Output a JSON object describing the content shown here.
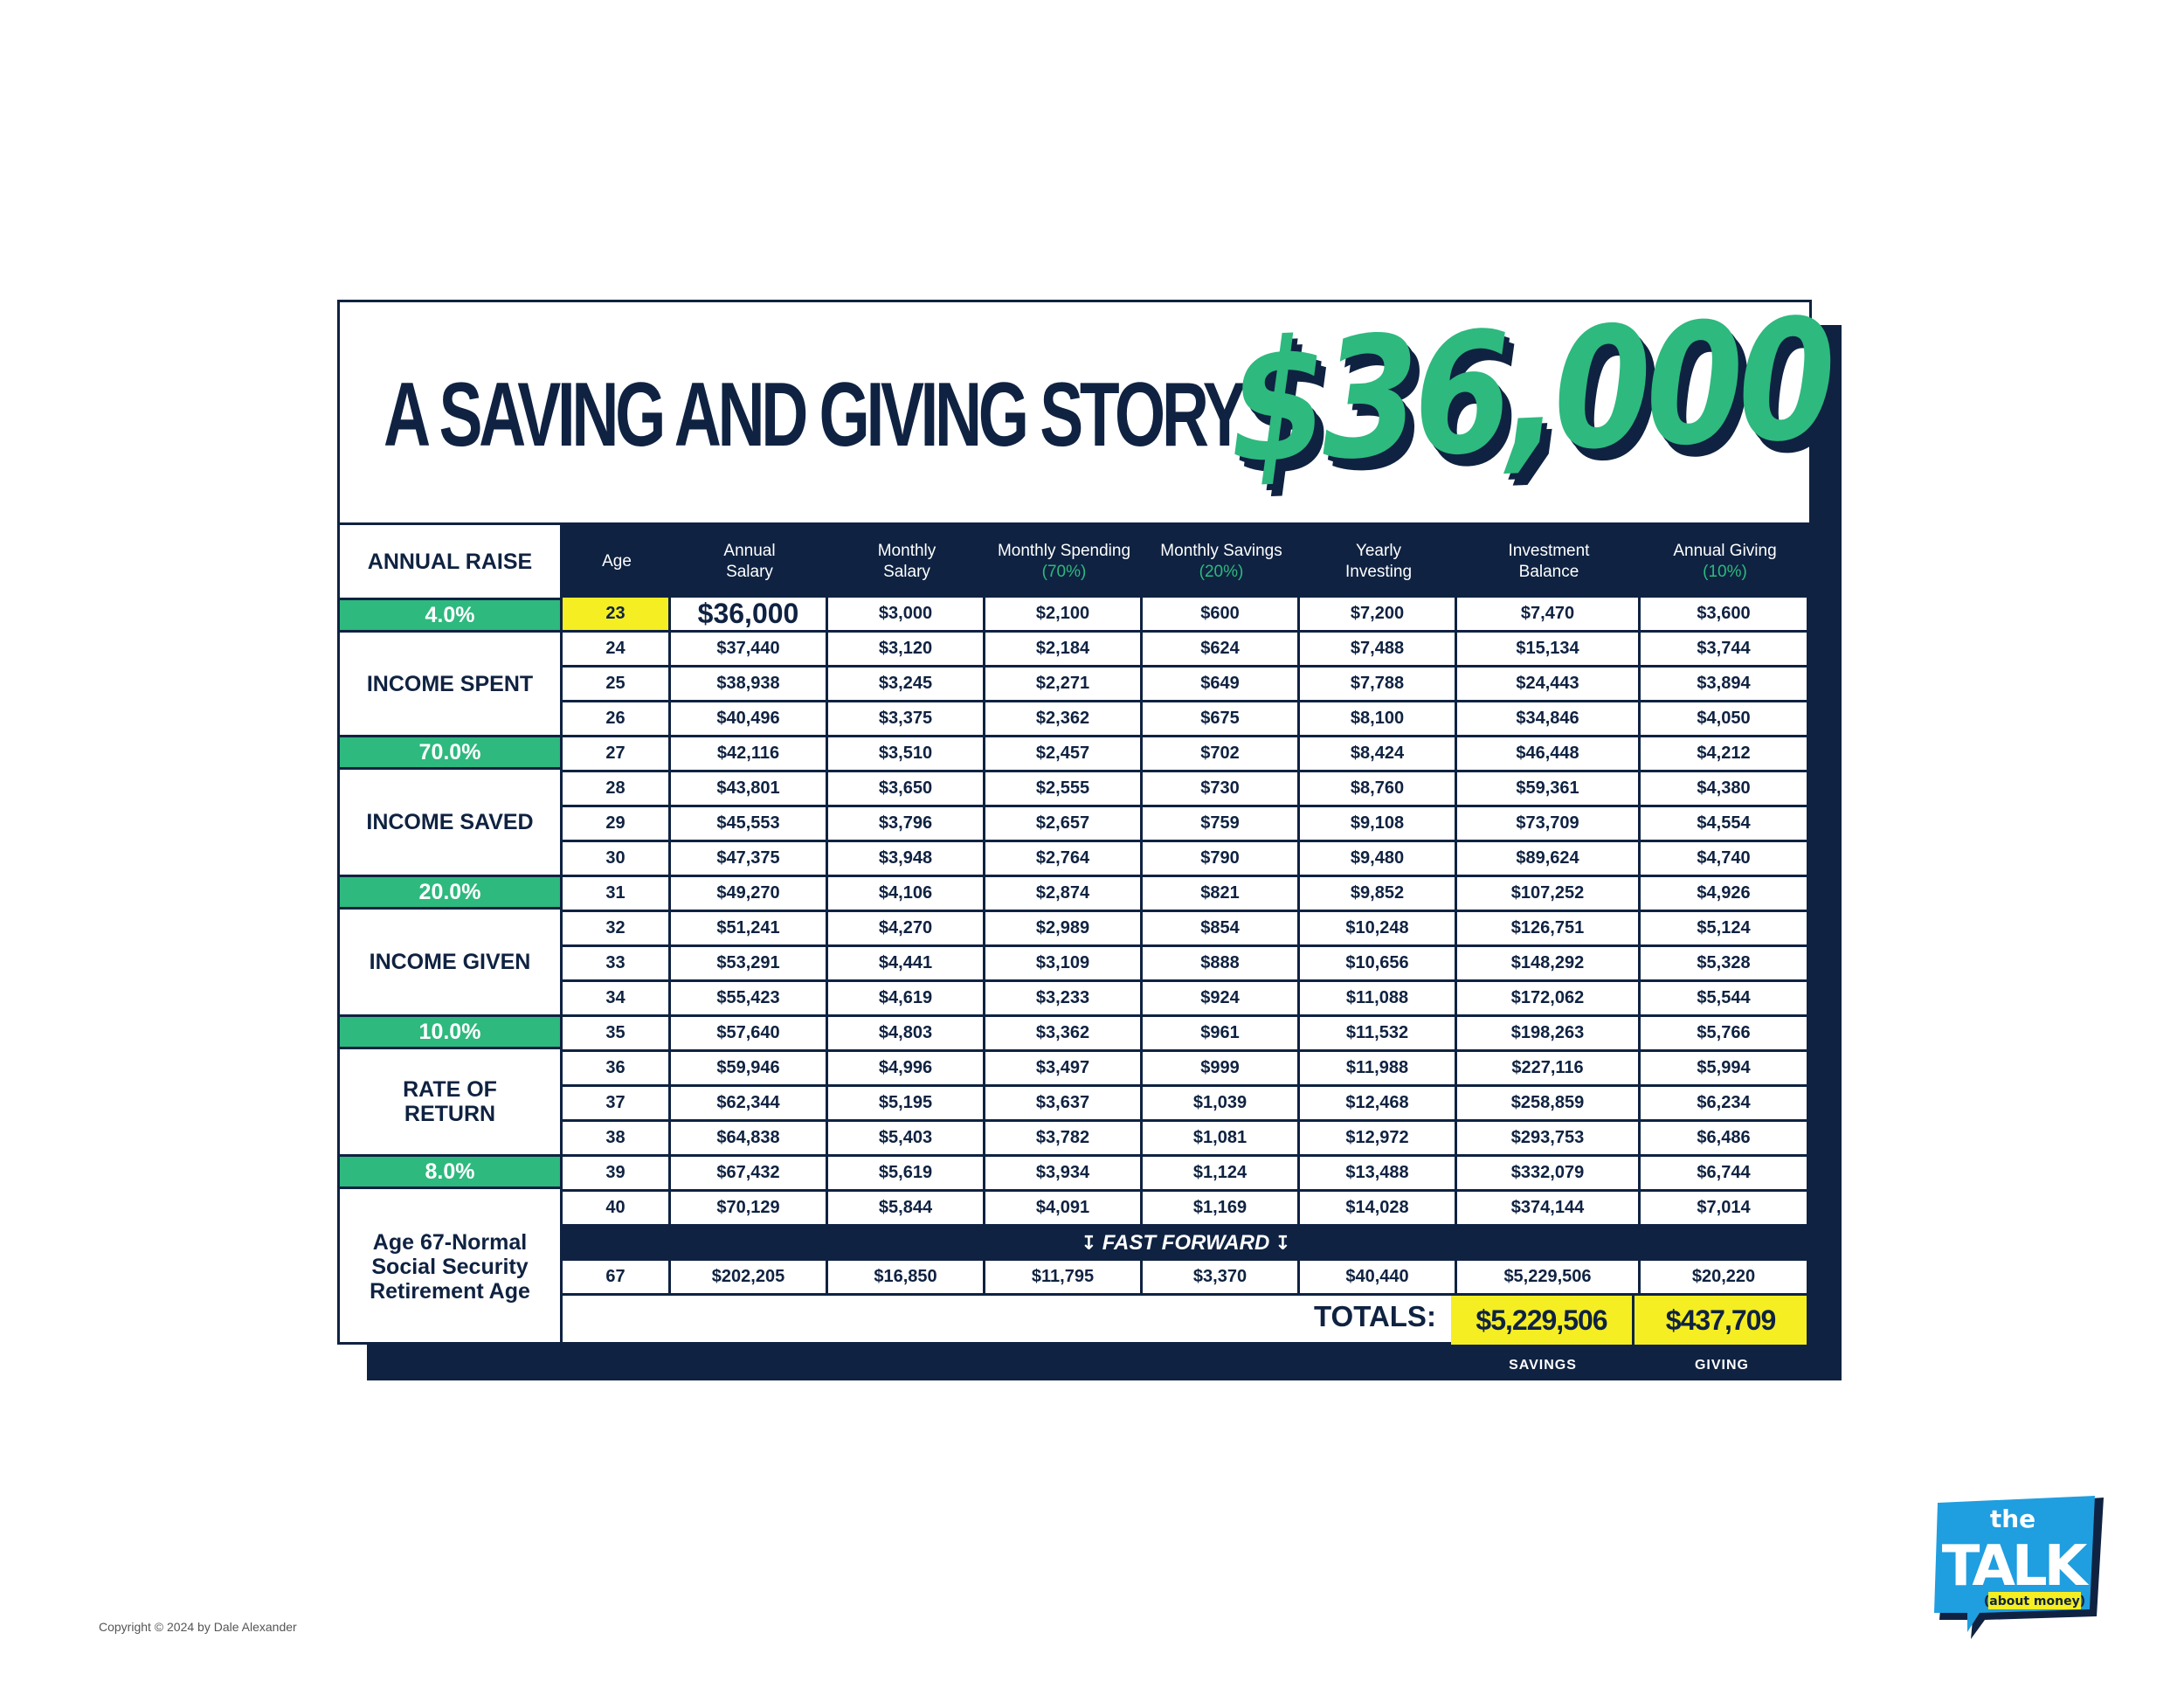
{
  "title": "A SAVING AND GIVING STORY",
  "big_amount": "$36,000",
  "left_panel": {
    "annual_raise_label": "ANNUAL RAISE",
    "annual_raise_value": "4.0%",
    "income_spent_label": "INCOME SPENT",
    "income_spent_value": "70.0%",
    "income_saved_label": "INCOME SAVED",
    "income_saved_value": "20.0%",
    "income_given_label": "INCOME GIVEN",
    "income_given_value": "10.0%",
    "rate_of_return_label_1": "RATE OF",
    "rate_of_return_label_2": "RETURN",
    "rate_of_return_value": "8.0%",
    "retirement_label_1": "Age 67-Normal",
    "retirement_label_2": "Social Security",
    "retirement_label_3": "Retirement Age"
  },
  "headers": [
    {
      "line1": "Age",
      "line2": "",
      "sub": ""
    },
    {
      "line1": "Annual",
      "line2": "Salary",
      "sub": ""
    },
    {
      "line1": "Monthly",
      "line2": "Salary",
      "sub": ""
    },
    {
      "line1": "Monthly Spending",
      "line2": "",
      "sub": "(70%)"
    },
    {
      "line1": "Monthly Savings",
      "line2": "",
      "sub": "(20%)"
    },
    {
      "line1": "Yearly",
      "line2": "Investing",
      "sub": ""
    },
    {
      "line1": "Investment",
      "line2": "Balance",
      "sub": ""
    },
    {
      "line1": "Annual Giving",
      "line2": "",
      "sub": "(10%)"
    }
  ],
  "rows": [
    [
      "23",
      "$36,000",
      "$3,000",
      "$2,100",
      "$600",
      "$7,200",
      "$7,470",
      "$3,600"
    ],
    [
      "24",
      "$37,440",
      "$3,120",
      "$2,184",
      "$624",
      "$7,488",
      "$15,134",
      "$3,744"
    ],
    [
      "25",
      "$38,938",
      "$3,245",
      "$2,271",
      "$649",
      "$7,788",
      "$24,443",
      "$3,894"
    ],
    [
      "26",
      "$40,496",
      "$3,375",
      "$2,362",
      "$675",
      "$8,100",
      "$34,846",
      "$4,050"
    ],
    [
      "27",
      "$42,116",
      "$3,510",
      "$2,457",
      "$702",
      "$8,424",
      "$46,448",
      "$4,212"
    ],
    [
      "28",
      "$43,801",
      "$3,650",
      "$2,555",
      "$730",
      "$8,760",
      "$59,361",
      "$4,380"
    ],
    [
      "29",
      "$45,553",
      "$3,796",
      "$2,657",
      "$759",
      "$9,108",
      "$73,709",
      "$4,554"
    ],
    [
      "30",
      "$47,375",
      "$3,948",
      "$2,764",
      "$790",
      "$9,480",
      "$89,624",
      "$4,740"
    ],
    [
      "31",
      "$49,270",
      "$4,106",
      "$2,874",
      "$821",
      "$9,852",
      "$107,252",
      "$4,926"
    ],
    [
      "32",
      "$51,241",
      "$4,270",
      "$2,989",
      "$854",
      "$10,248",
      "$126,751",
      "$5,124"
    ],
    [
      "33",
      "$53,291",
      "$4,441",
      "$3,109",
      "$888",
      "$10,656",
      "$148,292",
      "$5,328"
    ],
    [
      "34",
      "$55,423",
      "$4,619",
      "$3,233",
      "$924",
      "$11,088",
      "$172,062",
      "$5,544"
    ],
    [
      "35",
      "$57,640",
      "$4,803",
      "$3,362",
      "$961",
      "$11,532",
      "$198,263",
      "$5,766"
    ],
    [
      "36",
      "$59,946",
      "$4,996",
      "$3,497",
      "$999",
      "$11,988",
      "$227,116",
      "$5,994"
    ],
    [
      "37",
      "$62,344",
      "$5,195",
      "$3,637",
      "$1,039",
      "$12,468",
      "$258,859",
      "$6,234"
    ],
    [
      "38",
      "$64,838",
      "$5,403",
      "$3,782",
      "$1,081",
      "$12,972",
      "$293,753",
      "$6,486"
    ],
    [
      "39",
      "$67,432",
      "$5,619",
      "$3,934",
      "$1,124",
      "$13,488",
      "$332,079",
      "$6,744"
    ],
    [
      "40",
      "$70,129",
      "$5,844",
      "$4,091",
      "$1,169",
      "$14,028",
      "$374,144",
      "$7,014"
    ]
  ],
  "fast_forward": "FAST FORWARD",
  "final_row": [
    "67",
    "$202,205",
    "$16,850",
    "$11,795",
    "$3,370",
    "$40,440",
    "$5,229,506",
    "$20,220"
  ],
  "totals": {
    "label": "TOTALS:",
    "savings_value": "$5,229,506",
    "savings_tag": "SAVINGS",
    "giving_value": "$437,709",
    "giving_tag": "GIVING"
  },
  "copyright": "Copyright © 2024 by Dale Alexander",
  "logo": {
    "line1": "the",
    "line2": "TALK",
    "line3": "(about money)"
  },
  "colors": {
    "navy": "#0f2241",
    "green": "#2eb97e",
    "yellow": "#f5ee22",
    "logo_blue": "#1f9ee0"
  }
}
